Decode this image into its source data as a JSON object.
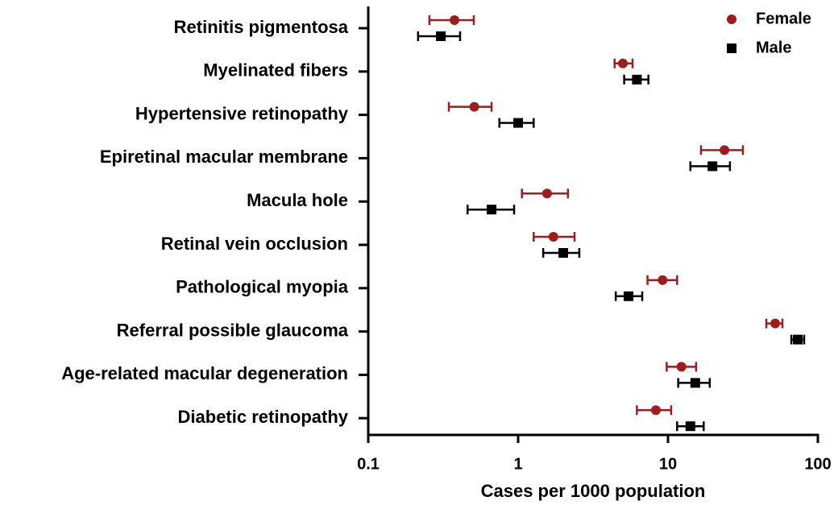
{
  "chart_data": {
    "type": "forest",
    "xlabel": "Cases per 1000 population",
    "categories": [
      "Retinitis pigmentosa",
      "Myelinated fibers",
      "Hypertensive retinopathy",
      "Epiretinal macular membrane",
      "Macula hole",
      "Retinal vein occlusion",
      "Pathological myopia",
      "Referral possible glaucoma",
      "Age-related macular degeneration",
      "Diabetic retinopathy"
    ],
    "series": [
      {
        "name": "Female",
        "color": "#a01c1c",
        "marker": "circle",
        "values": [
          0.376,
          5.0,
          0.51,
          23.8,
          1.56,
          1.72,
          9.2,
          51.9,
          12.3,
          8.3
        ],
        "lower": [
          0.256,
          4.4,
          0.345,
          16.6,
          1.06,
          1.27,
          7.3,
          45.3,
          9.8,
          6.2
        ],
        "upper": [
          0.506,
          5.8,
          0.665,
          31.6,
          2.15,
          2.38,
          11.5,
          58,
          15.4,
          10.5
        ]
      },
      {
        "name": "Male",
        "color": "#000000",
        "marker": "square",
        "values": [
          0.305,
          6.2,
          1.0,
          19.8,
          0.665,
          2.0,
          5.45,
          73.4,
          15.2,
          14.1
        ],
        "lower": [
          0.215,
          5.1,
          0.75,
          14.1,
          0.46,
          1.47,
          4.48,
          66.5,
          11.7,
          11.5
        ],
        "upper": [
          0.41,
          7.4,
          1.27,
          25.9,
          0.94,
          2.56,
          6.73,
          81,
          19,
          17.3
        ]
      }
    ],
    "xscale": "log",
    "xlim": [
      0.1,
      100
    ],
    "xticks": [
      0.1,
      1,
      10,
      100
    ],
    "legend": "top-right"
  }
}
